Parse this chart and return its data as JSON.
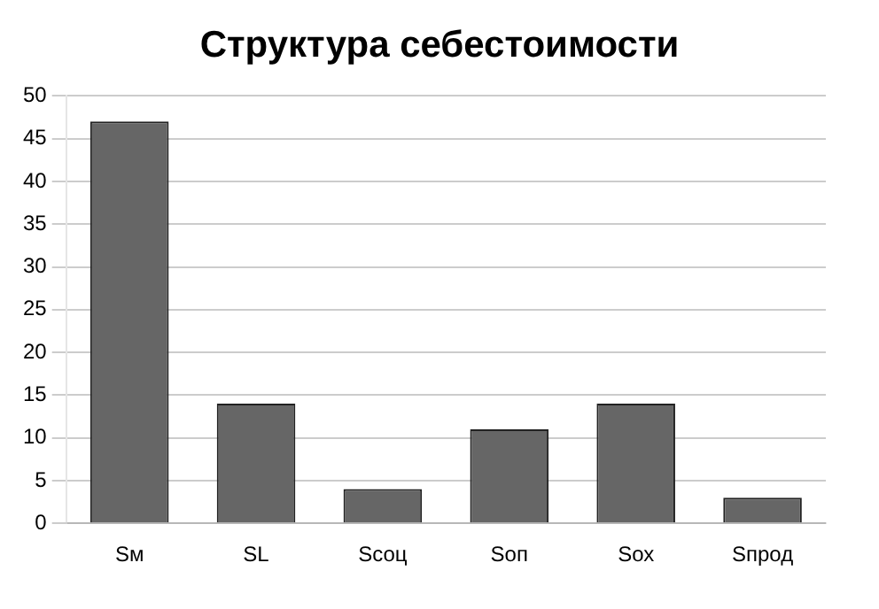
{
  "chart_data": {
    "type": "bar",
    "title": "Структура себестоимости",
    "categories": [
      "Sм",
      "SL",
      "Sсоц",
      "Sоп",
      "Sох",
      "Sпрод"
    ],
    "values": [
      47,
      14,
      4,
      11,
      14,
      3
    ],
    "color": "#666666",
    "ylim": [
      0,
      50
    ],
    "yticks": [
      0,
      5,
      10,
      15,
      20,
      25,
      30,
      35,
      40,
      45,
      50
    ],
    "grid": "y",
    "legend": false
  }
}
